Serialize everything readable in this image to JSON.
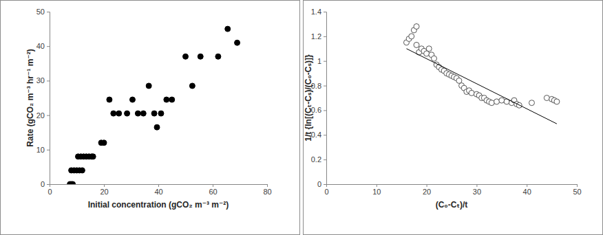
{
  "chart_data": [
    {
      "type": "scatter",
      "x_label": "Initial concentration (gCO₂ m⁻³ m⁻²)",
      "y_label": "Rate (gCO₂ m⁻³ hr⁻¹ m⁻²)",
      "xlim": [
        0,
        80
      ],
      "xticks": [
        0,
        20,
        40,
        60,
        80
      ],
      "ylim": [
        0,
        50
      ],
      "yticks": [
        0,
        10,
        20,
        30,
        40,
        50
      ],
      "grid": false,
      "series": [
        {
          "color": "#000000",
          "marker": "circle",
          "x": [
            7.5,
            8,
            8.5,
            8,
            9,
            10,
            11,
            12,
            10.5,
            11.5,
            12.5,
            13.5,
            14.5,
            15.5,
            16,
            19,
            20,
            22,
            23.5,
            25.5,
            28.5,
            30.5,
            32.5,
            34.5,
            36.5,
            38.5,
            39.5,
            41,
            43,
            45,
            50,
            52.5,
            55.5,
            62,
            65.5,
            69
          ],
          "values": [
            0,
            0,
            0,
            4,
            4,
            4,
            4,
            4,
            8,
            8,
            8,
            8,
            8,
            8,
            8,
            12,
            12,
            24.5,
            20.5,
            20.5,
            20.5,
            24.5,
            20.5,
            20.5,
            28.5,
            20.5,
            16.5,
            20.5,
            24.5,
            24.5,
            37,
            28.5,
            37,
            37,
            45,
            41
          ]
        }
      ]
    },
    {
      "type": "scatter",
      "x_label": "(C₀-Cₜ)/t",
      "y_label": "1/t {ln[(Cₜ-Cₛ)/(C₀-Cₛ)]}",
      "xlim": [
        0,
        50
      ],
      "xticks": [
        0,
        10,
        20,
        30,
        40,
        50
      ],
      "ylim": [
        0,
        1.4
      ],
      "yticks": [
        0,
        0.2,
        0.4,
        0.6,
        0.8,
        1,
        1.2,
        1.4
      ],
      "grid": false,
      "series": [
        {
          "color": "#000000",
          "marker": "circle-open",
          "x": [
            16,
            16.5,
            17,
            17.5,
            18,
            18,
            18.5,
            19,
            19.5,
            20,
            20.5,
            21,
            21.5,
            22,
            22.5,
            23,
            23.5,
            24,
            24.5,
            25,
            25.5,
            26,
            26.5,
            27,
            27.5,
            28,
            28.5,
            29,
            30,
            30.5,
            31,
            31.5,
            32,
            32.5,
            33,
            34,
            35,
            36,
            37,
            37.5,
            38,
            38.5,
            41,
            44,
            45,
            45.5,
            46
          ],
          "values": [
            1.15,
            1.18,
            1.2,
            1.25,
            1.28,
            1.13,
            1.07,
            1.1,
            1.08,
            1.06,
            1.1,
            1.05,
            1.02,
            0.97,
            0.95,
            0.93,
            0.92,
            0.9,
            0.89,
            0.88,
            0.87,
            0.86,
            0.84,
            0.8,
            0.78,
            0.75,
            0.76,
            0.74,
            0.73,
            0.72,
            0.7,
            0.7,
            0.68,
            0.67,
            0.66,
            0.67,
            0.68,
            0.67,
            0.66,
            0.68,
            0.65,
            0.64,
            0.66,
            0.7,
            0.69,
            0.68,
            0.67
          ]
        },
        {
          "type": "line",
          "color": "#000000",
          "line_style": "solid",
          "x": [
            16,
            46
          ],
          "values": [
            1.1,
            0.49
          ]
        }
      ]
    }
  ]
}
